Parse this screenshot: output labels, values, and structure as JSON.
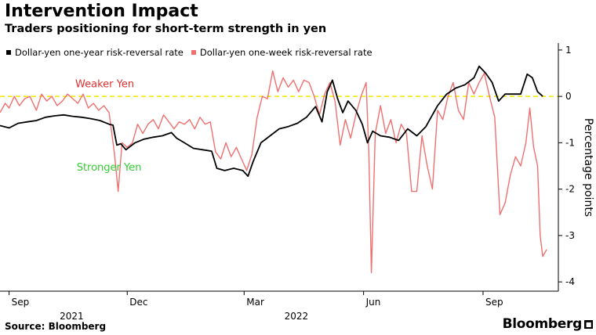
{
  "header": {
    "title": "Intervention Impact",
    "subtitle": "Traders positioning for short-term strength in yen"
  },
  "footer": {
    "source": "Source: Bloomberg",
    "logo": "Bloomberg"
  },
  "colors": {
    "one_year": "#000000",
    "one_week": "#f07070",
    "zero_line": "#f2e600",
    "weaker": "#e03030",
    "stronger": "#33cc33"
  },
  "chart_data": {
    "type": "line",
    "ylabel": "Percentage points",
    "ylim": [
      -4.2,
      1.15
    ],
    "yticks": [
      1,
      0,
      -1,
      -2,
      -3,
      -4
    ],
    "ytick_labels": [
      "1",
      "0",
      "-1",
      "-2",
      "-3",
      "-4"
    ],
    "xlim": [
      "2021-08-25",
      "2022-10-29"
    ],
    "xticks": [
      {
        "date": "2021-09-01",
        "label": "Sep"
      },
      {
        "date": "2021-12-01",
        "label": "Dec"
      },
      {
        "date": "2022-03-01",
        "label": "Mar"
      },
      {
        "date": "2022-06-01",
        "label": "Jun"
      },
      {
        "date": "2022-09-01",
        "label": "Sep"
      }
    ],
    "year_labels": [
      {
        "date": "2021-10-10",
        "label": "2021"
      },
      {
        "date": "2022-04-01",
        "label": "2022"
      }
    ],
    "legend_position": "top-left",
    "annotations": [
      {
        "text": "Weaker Yen",
        "date": "2021-10-22",
        "y": 0.2,
        "color": "#e03030"
      },
      {
        "text": "Stronger Yen",
        "date": "2021-10-23",
        "y": -1.6,
        "color": "#33cc33"
      }
    ],
    "reference_line": {
      "y": 0
    },
    "series": [
      {
        "name": "Dollar-yen one-year risk-reversal rate",
        "color": "#000000",
        "points": [
          [
            "2021-08-25",
            -0.63
          ],
          [
            "2021-09-01",
            -0.68
          ],
          [
            "2021-09-08",
            -0.58
          ],
          [
            "2021-09-15",
            -0.55
          ],
          [
            "2021-09-22",
            -0.52
          ],
          [
            "2021-09-29",
            -0.45
          ],
          [
            "2021-10-06",
            -0.42
          ],
          [
            "2021-10-13",
            -0.4
          ],
          [
            "2021-10-20",
            -0.43
          ],
          [
            "2021-10-27",
            -0.45
          ],
          [
            "2021-11-03",
            -0.48
          ],
          [
            "2021-11-10",
            -0.52
          ],
          [
            "2021-11-17",
            -0.6
          ],
          [
            "2021-11-20",
            -0.62
          ],
          [
            "2021-11-23",
            -1.05
          ],
          [
            "2021-11-26",
            -1.02
          ],
          [
            "2021-11-30",
            -1.15
          ],
          [
            "2021-12-07",
            -1.0
          ],
          [
            "2021-12-14",
            -0.92
          ],
          [
            "2021-12-21",
            -0.88
          ],
          [
            "2021-12-28",
            -0.85
          ],
          [
            "2022-01-04",
            -0.78
          ],
          [
            "2022-01-08",
            -0.9
          ],
          [
            "2022-01-14",
            -1.0
          ],
          [
            "2022-01-21",
            -1.12
          ],
          [
            "2022-01-28",
            -1.15
          ],
          [
            "2022-02-04",
            -1.18
          ],
          [
            "2022-02-08",
            -1.55
          ],
          [
            "2022-02-14",
            -1.6
          ],
          [
            "2022-02-21",
            -1.55
          ],
          [
            "2022-02-28",
            -1.6
          ],
          [
            "2022-03-04",
            -1.72
          ],
          [
            "2022-03-08",
            -1.4
          ],
          [
            "2022-03-14",
            -1.0
          ],
          [
            "2022-03-21",
            -0.85
          ],
          [
            "2022-03-28",
            -0.7
          ],
          [
            "2022-04-04",
            -0.65
          ],
          [
            "2022-04-11",
            -0.58
          ],
          [
            "2022-04-18",
            -0.45
          ],
          [
            "2022-04-25",
            -0.22
          ],
          [
            "2022-04-30",
            -0.55
          ],
          [
            "2022-05-04",
            0.1
          ],
          [
            "2022-05-08",
            0.35
          ],
          [
            "2022-05-12",
            -0.05
          ],
          [
            "2022-05-16",
            -0.35
          ],
          [
            "2022-05-20",
            -0.1
          ],
          [
            "2022-05-26",
            -0.3
          ],
          [
            "2022-05-31",
            -0.6
          ],
          [
            "2022-06-04",
            -1.0
          ],
          [
            "2022-06-08",
            -0.75
          ],
          [
            "2022-06-14",
            -0.85
          ],
          [
            "2022-06-21",
            -0.88
          ],
          [
            "2022-06-28",
            -0.95
          ],
          [
            "2022-07-05",
            -0.7
          ],
          [
            "2022-07-12",
            -0.85
          ],
          [
            "2022-07-19",
            -0.65
          ],
          [
            "2022-07-23",
            -0.45
          ],
          [
            "2022-07-28",
            -0.2
          ],
          [
            "2022-08-04",
            0.05
          ],
          [
            "2022-08-11",
            0.18
          ],
          [
            "2022-08-18",
            0.25
          ],
          [
            "2022-08-25",
            0.4
          ],
          [
            "2022-08-29",
            0.65
          ],
          [
            "2022-09-03",
            0.5
          ],
          [
            "2022-09-08",
            0.3
          ],
          [
            "2022-09-13",
            -0.1
          ],
          [
            "2022-09-18",
            0.05
          ],
          [
            "2022-09-23",
            0.05
          ],
          [
            "2022-09-30",
            0.05
          ],
          [
            "2022-10-05",
            0.48
          ],
          [
            "2022-10-09",
            0.4
          ],
          [
            "2022-10-13",
            0.1
          ],
          [
            "2022-10-17",
            0.0
          ]
        ]
      },
      {
        "name": "Dollar-yen one-week risk-reversal rate",
        "color": "#f07070",
        "points": [
          [
            "2021-08-25",
            -0.35
          ],
          [
            "2021-08-29",
            -0.15
          ],
          [
            "2021-09-01",
            -0.25
          ],
          [
            "2021-09-05",
            0.0
          ],
          [
            "2021-09-09",
            -0.2
          ],
          [
            "2021-09-13",
            -0.05
          ],
          [
            "2021-09-17",
            0.0
          ],
          [
            "2021-09-22",
            -0.3
          ],
          [
            "2021-09-26",
            0.05
          ],
          [
            "2021-09-30",
            -0.1
          ],
          [
            "2021-10-04",
            0.0
          ],
          [
            "2021-10-08",
            -0.2
          ],
          [
            "2021-10-12",
            -0.1
          ],
          [
            "2021-10-16",
            0.05
          ],
          [
            "2021-10-20",
            -0.05
          ],
          [
            "2021-10-24",
            -0.15
          ],
          [
            "2021-10-28",
            0.05
          ],
          [
            "2021-11-01",
            -0.25
          ],
          [
            "2021-11-05",
            -0.15
          ],
          [
            "2021-11-09",
            -0.3
          ],
          [
            "2021-11-13",
            -0.2
          ],
          [
            "2021-11-17",
            -0.35
          ],
          [
            "2021-11-21",
            -1.2
          ],
          [
            "2021-11-24",
            -2.05
          ],
          [
            "2021-11-27",
            -1.0
          ],
          [
            "2021-12-01",
            -1.1
          ],
          [
            "2021-12-05",
            -1.0
          ],
          [
            "2021-12-09",
            -0.6
          ],
          [
            "2021-12-13",
            -0.8
          ],
          [
            "2021-12-17",
            -0.6
          ],
          [
            "2021-12-21",
            -0.5
          ],
          [
            "2021-12-25",
            -0.7
          ],
          [
            "2021-12-29",
            -0.4
          ],
          [
            "2022-01-02",
            -0.55
          ],
          [
            "2022-01-06",
            -0.7
          ],
          [
            "2022-01-10",
            -0.55
          ],
          [
            "2022-01-14",
            -0.6
          ],
          [
            "2022-01-18",
            -0.5
          ],
          [
            "2022-01-22",
            -0.7
          ],
          [
            "2022-01-26",
            -0.45
          ],
          [
            "2022-01-30",
            -0.6
          ],
          [
            "2022-02-03",
            -0.55
          ],
          [
            "2022-02-07",
            -1.2
          ],
          [
            "2022-02-11",
            -1.35
          ],
          [
            "2022-02-15",
            -1.0
          ],
          [
            "2022-02-19",
            -1.3
          ],
          [
            "2022-02-23",
            -1.1
          ],
          [
            "2022-02-27",
            -1.35
          ],
          [
            "2022-03-03",
            -1.6
          ],
          [
            "2022-03-07",
            -1.25
          ],
          [
            "2022-03-11",
            -0.45
          ],
          [
            "2022-03-15",
            0.0
          ],
          [
            "2022-03-19",
            -0.05
          ],
          [
            "2022-03-23",
            0.55
          ],
          [
            "2022-03-27",
            0.1
          ],
          [
            "2022-03-31",
            0.4
          ],
          [
            "2022-04-04",
            0.2
          ],
          [
            "2022-04-08",
            0.35
          ],
          [
            "2022-04-12",
            0.1
          ],
          [
            "2022-04-16",
            0.35
          ],
          [
            "2022-04-20",
            0.3
          ],
          [
            "2022-04-24",
            0.0
          ],
          [
            "2022-04-28",
            -0.4
          ],
          [
            "2022-05-02",
            0.05
          ],
          [
            "2022-05-06",
            0.3
          ],
          [
            "2022-05-10",
            -0.1
          ],
          [
            "2022-05-14",
            -1.05
          ],
          [
            "2022-05-18",
            -0.5
          ],
          [
            "2022-05-22",
            -0.9
          ],
          [
            "2022-05-26",
            -0.4
          ],
          [
            "2022-05-30",
            0.0
          ],
          [
            "2022-06-03",
            0.3
          ],
          [
            "2022-06-05",
            -1.2
          ],
          [
            "2022-06-07",
            -3.8
          ],
          [
            "2022-06-10",
            -0.8
          ],
          [
            "2022-06-14",
            -0.2
          ],
          [
            "2022-06-18",
            -0.8
          ],
          [
            "2022-06-22",
            -0.5
          ],
          [
            "2022-06-26",
            -1.0
          ],
          [
            "2022-06-30",
            -0.6
          ],
          [
            "2022-07-04",
            -0.8
          ],
          [
            "2022-07-08",
            -2.05
          ],
          [
            "2022-07-12",
            -2.05
          ],
          [
            "2022-07-16",
            -0.85
          ],
          [
            "2022-07-20",
            -1.5
          ],
          [
            "2022-07-24",
            -2.0
          ],
          [
            "2022-07-28",
            -0.3
          ],
          [
            "2022-08-01",
            -0.5
          ],
          [
            "2022-08-05",
            0.0
          ],
          [
            "2022-08-09",
            0.3
          ],
          [
            "2022-08-13",
            -0.3
          ],
          [
            "2022-08-17",
            -0.5
          ],
          [
            "2022-08-21",
            0.3
          ],
          [
            "2022-08-25",
            0.05
          ],
          [
            "2022-08-29",
            0.3
          ],
          [
            "2022-09-02",
            0.5
          ],
          [
            "2022-09-06",
            0.0
          ],
          [
            "2022-09-10",
            -0.45
          ],
          [
            "2022-09-14",
            -2.55
          ],
          [
            "2022-09-18",
            -2.3
          ],
          [
            "2022-09-22",
            -1.7
          ],
          [
            "2022-09-26",
            -1.3
          ],
          [
            "2022-09-30",
            -1.5
          ],
          [
            "2022-10-04",
            -1.0
          ],
          [
            "2022-10-07",
            -0.25
          ],
          [
            "2022-10-10",
            -1.1
          ],
          [
            "2022-10-13",
            -1.5
          ],
          [
            "2022-10-15",
            -3.0
          ],
          [
            "2022-10-17",
            -3.45
          ],
          [
            "2022-10-20",
            -3.3
          ]
        ]
      }
    ]
  }
}
